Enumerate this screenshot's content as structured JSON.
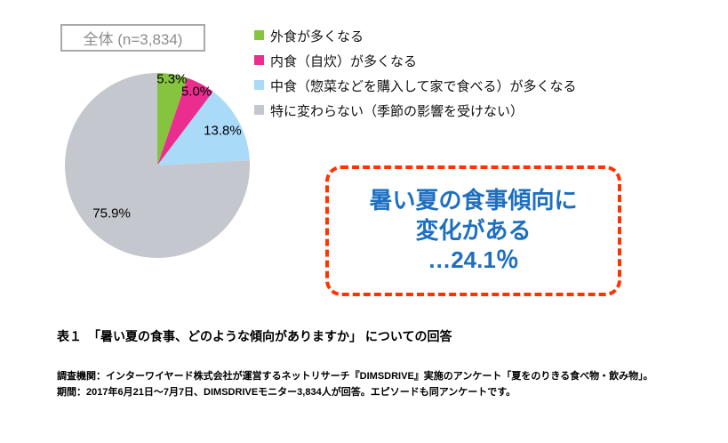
{
  "chart_data": {
    "type": "pie",
    "title": "全体 (n=3,834)",
    "categories": [
      "外食が多くなる",
      "内食（自炊）が多くなる",
      "中食（惣菜などを購入して家で食べる）が多くなる",
      "特に変わらない（季節の影響を受けない）"
    ],
    "values": [
      5.3,
      5.0,
      13.8,
      75.9
    ],
    "labels": [
      "5.3%",
      "5.0%",
      "13.8%",
      "75.9%"
    ],
    "colors": [
      "#86c440",
      "#eb2d8f",
      "#a9daf8",
      "#c4c8ce"
    ],
    "legend_position": "right",
    "start_angle_deg": 0,
    "direction": "clockwise"
  },
  "callout": {
    "line1": "暑い夏の食事傾向に",
    "line2": "変化がある",
    "line3": "…24.1％",
    "text_color": "#1e6fc0",
    "border_color": "#ff3300"
  },
  "caption": "表１　「暑い夏の食事、どのような傾向がありますか」 についての回答",
  "footnote": {
    "line1": "調査機関：インターワイヤード株式会社が運営するネットリサーチ『DIMSDRIVE』実施のアンケート「夏をのりきる食べ物・飲み物」。",
    "line2": "期間：2017年6月21日～7月7日、DIMSDRIVEモニター3,834人が回答。エピソードも同アンケートです。"
  }
}
